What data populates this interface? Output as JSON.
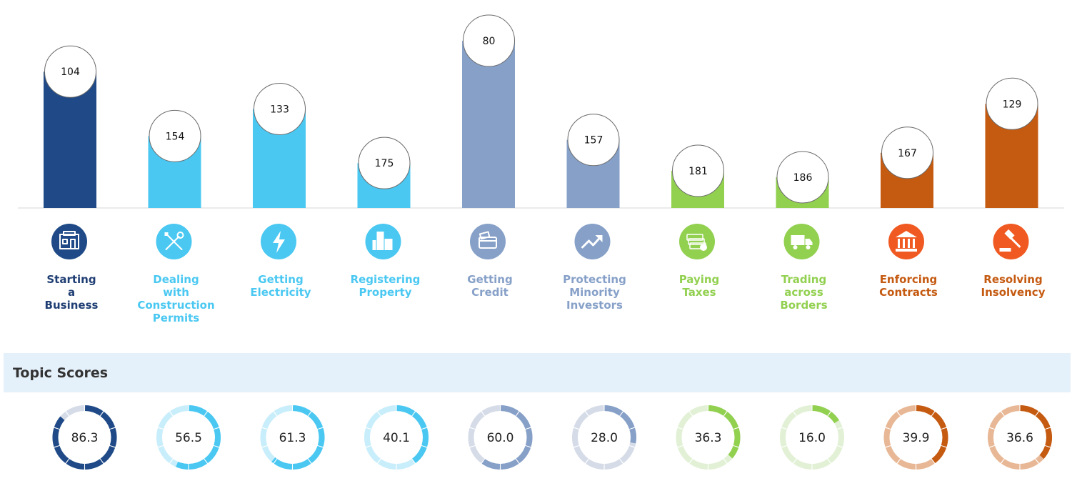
{
  "chart_data": [
    {
      "type": "bar",
      "categories": [
        "Starting a Business",
        "Dealing with Construction Permits",
        "Getting Electricity",
        "Registering Property",
        "Getting Credit",
        "Protecting Minority Investors",
        "Paying Taxes",
        "Trading across Borders",
        "Enforcing Contracts",
        "Resolving Insolvency"
      ],
      "label_lines": [
        [
          "Starting",
          "a",
          "Business"
        ],
        [
          "Dealing",
          "with",
          "Construction",
          "Permits"
        ],
        [
          "Getting",
          "Electricity"
        ],
        [
          "Registering",
          "Property"
        ],
        [
          "Getting",
          "Credit"
        ],
        [
          "Protecting",
          "Minority",
          "Investors"
        ],
        [
          "Paying",
          "Taxes"
        ],
        [
          "Trading",
          "across",
          "Borders"
        ],
        [
          "Enforcing",
          "Contracts"
        ],
        [
          "Resolving",
          "Insolvency"
        ]
      ],
      "values": [
        104,
        154,
        133,
        175,
        80,
        157,
        181,
        186,
        167,
        129
      ],
      "value_scale": "rank (lower rank = taller bar)",
      "colors": [
        "#1f4a87",
        "#4ac8f2",
        "#4ac8f2",
        "#4ac8f2",
        "#86a0c8",
        "#86a0c8",
        "#92d050",
        "#92d050",
        "#c55a11",
        "#c55a11"
      ],
      "label_colors": [
        "#1f3e73",
        "#4ac8f2",
        "#4ac8f2",
        "#4ac8f2",
        "#86a0c8",
        "#86a0c8",
        "#92d050",
        "#92d050",
        "#c55a11",
        "#c55a11"
      ],
      "icon_colors": [
        "#1f4a87",
        "#4ac8f2",
        "#4ac8f2",
        "#4ac8f2",
        "#86a0c8",
        "#86a0c8",
        "#92d050",
        "#92d050",
        "#f05a22",
        "#f05a22"
      ],
      "icons": [
        "building-icon",
        "tools-icon",
        "lightning-icon",
        "city-buildings-icon",
        "credit-card-icon",
        "trend-arrow-icon",
        "money-stack-icon",
        "truck-icon",
        "courthouse-icon",
        "gavel-icon"
      ],
      "grid": false,
      "legend": "none"
    },
    {
      "type": "donut",
      "title": "Topic Scores",
      "categories": [
        "Starting a Business",
        "Dealing with Construction Permits",
        "Getting Electricity",
        "Registering Property",
        "Getting Credit",
        "Protecting Minority Investors",
        "Paying Taxes",
        "Trading across Borders",
        "Enforcing Contracts",
        "Resolving Insolvency"
      ],
      "values": [
        86.3,
        56.5,
        61.3,
        40.1,
        60.0,
        28.0,
        36.3,
        16.0,
        39.9,
        36.6
      ],
      "display_values": [
        "86.3",
        "56.5",
        "61.3",
        "40.1",
        "60.0",
        "28.0",
        "36.3",
        "16.0",
        "39.9",
        "36.6"
      ],
      "max": 100,
      "colors": [
        "#1f4a87",
        "#4ac8f2",
        "#4ac8f2",
        "#4ac8f2",
        "#86a0c8",
        "#86a0c8",
        "#92d050",
        "#92d050",
        "#c55a11",
        "#c55a11"
      ],
      "track_colors": [
        "#d5dce8",
        "#c9eefb",
        "#c9eefb",
        "#c9eefb",
        "#d5dce8",
        "#d5dce8",
        "#e2f1d5",
        "#e2f1d5",
        "#e8b896",
        "#e8b896"
      ]
    }
  ]
}
